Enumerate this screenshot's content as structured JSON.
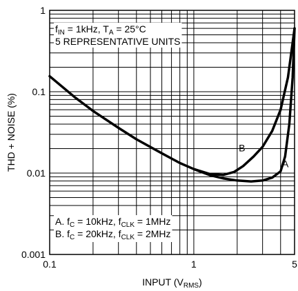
{
  "chart_data": {
    "type": "line",
    "title": "",
    "xlabel": {
      "prefix": "INPUT (V",
      "sub": "RMS",
      "suffix": ")"
    },
    "ylabel": "THD + NOISE (%)",
    "x_scale": "log",
    "y_scale": "log",
    "xlim": [
      0.1,
      5
    ],
    "ylim": [
      0.001,
      1
    ],
    "grid": true,
    "x_ticks": [
      {
        "value": 0.1,
        "label": "0.1"
      },
      {
        "value": 1,
        "label": "1"
      },
      {
        "value": 5,
        "label": "5"
      }
    ],
    "y_ticks": [
      {
        "value": 1,
        "label": "1"
      },
      {
        "value": 0.1,
        "label": "0.1"
      },
      {
        "value": 0.01,
        "label": "0.01"
      },
      {
        "value": 0.001,
        "label": "0.001"
      }
    ],
    "annotations": {
      "conditions": [
        [
          {
            "t": "f",
            "s": "normal"
          },
          {
            "t": "IN",
            "s": "sub"
          },
          {
            "t": " = 1kHz, T",
            "s": "normal"
          },
          {
            "t": "A",
            "s": "sub"
          },
          {
            "t": " = 25°C",
            "s": "normal"
          }
        ],
        [
          {
            "t": "5 REPRESENTATIVE UNITS",
            "s": "normal"
          }
        ]
      ],
      "legend_lines": [
        [
          {
            "t": "A. f",
            "s": "normal"
          },
          {
            "t": "C",
            "s": "sub"
          },
          {
            "t": " = 10kHz, f",
            "s": "normal"
          },
          {
            "t": "CLK",
            "s": "sub"
          },
          {
            "t": " = 1MHz",
            "s": "normal"
          }
        ],
        [
          {
            "t": "B. f",
            "s": "normal"
          },
          {
            "t": "C",
            "s": "sub"
          },
          {
            "t": " = 20kHz, f",
            "s": "normal"
          },
          {
            "t": "CLK",
            "s": "sub"
          },
          {
            "t": " = 2MHz",
            "s": "normal"
          }
        ]
      ]
    },
    "series": [
      {
        "name": "A",
        "color": "#000000",
        "points": [
          [
            0.1,
            0.155
          ],
          [
            0.15,
            0.085
          ],
          [
            0.2,
            0.058
          ],
          [
            0.3,
            0.036
          ],
          [
            0.4,
            0.026
          ],
          [
            0.6,
            0.0175
          ],
          [
            0.8,
            0.0133
          ],
          [
            1.0,
            0.0112
          ],
          [
            1.3,
            0.0094
          ],
          [
            1.6,
            0.0086
          ],
          [
            2.0,
            0.0081
          ],
          [
            2.5,
            0.0079
          ],
          [
            3.0,
            0.0081
          ],
          [
            3.5,
            0.0088
          ],
          [
            4.0,
            0.0105
          ],
          [
            4.3,
            0.016
          ],
          [
            4.6,
            0.04
          ],
          [
            4.85,
            0.15
          ],
          [
            5.0,
            0.6
          ]
        ]
      },
      {
        "name": "B",
        "color": "#000000",
        "points": [
          [
            1.0,
            0.0112
          ],
          [
            1.3,
            0.0097
          ],
          [
            1.6,
            0.0095
          ],
          [
            1.9,
            0.0103
          ],
          [
            2.2,
            0.0122
          ],
          [
            2.6,
            0.016
          ],
          [
            3.0,
            0.021
          ],
          [
            3.5,
            0.033
          ],
          [
            4.0,
            0.06
          ],
          [
            4.5,
            0.15
          ],
          [
            5.0,
            0.6
          ]
        ]
      }
    ]
  }
}
